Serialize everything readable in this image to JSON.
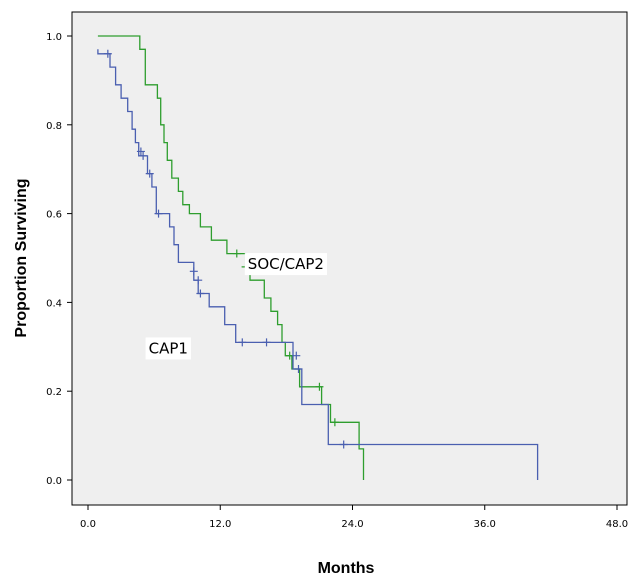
{
  "chart_data": {
    "type": "line",
    "step": true,
    "xlabel": "Months",
    "ylabel": "Proportion Surviving",
    "xlim": [
      0,
      48
    ],
    "ylim": [
      0,
      1
    ],
    "xticks": [
      0,
      12,
      24,
      36,
      48
    ],
    "xtick_labels": [
      "0.0",
      "12.0",
      "24.0",
      "36.0",
      "48.0"
    ],
    "yticks": [
      0,
      0.2,
      0.4,
      0.6,
      0.8,
      1.0
    ],
    "ytick_labels": [
      "0.0",
      "0.2",
      "0.4",
      "0.6",
      "0.8",
      "1.0"
    ],
    "grid": false,
    "background": "#efefef",
    "annotations": [
      {
        "text": "SOC/CAP2",
        "x": 14.5,
        "y": 0.475
      },
      {
        "text": "CAP1",
        "x": 5.5,
        "y": 0.285
      }
    ],
    "series": [
      {
        "name": "SOC/CAP2",
        "color": "#2e9e2e",
        "points": [
          [
            0.9,
            1.0
          ],
          [
            4.7,
            1.0
          ],
          [
            4.7,
            0.97
          ],
          [
            5.2,
            0.97
          ],
          [
            5.2,
            0.89
          ],
          [
            6.3,
            0.89
          ],
          [
            6.3,
            0.86
          ],
          [
            6.6,
            0.86
          ],
          [
            6.6,
            0.8
          ],
          [
            6.9,
            0.8
          ],
          [
            6.9,
            0.76
          ],
          [
            7.2,
            0.76
          ],
          [
            7.2,
            0.72
          ],
          [
            7.6,
            0.72
          ],
          [
            7.6,
            0.68
          ],
          [
            8.2,
            0.68
          ],
          [
            8.2,
            0.65
          ],
          [
            8.6,
            0.65
          ],
          [
            8.6,
            0.62
          ],
          [
            9.2,
            0.62
          ],
          [
            9.2,
            0.6
          ],
          [
            10.2,
            0.6
          ],
          [
            10.2,
            0.57
          ],
          [
            11.2,
            0.57
          ],
          [
            11.2,
            0.54
          ],
          [
            12.6,
            0.54
          ],
          [
            12.6,
            0.51
          ],
          [
            14.3,
            0.51
          ],
          [
            14.3,
            0.48
          ],
          [
            14.7,
            0.48
          ],
          [
            14.7,
            0.45
          ],
          [
            16.0,
            0.45
          ],
          [
            16.0,
            0.41
          ],
          [
            16.6,
            0.41
          ],
          [
            16.6,
            0.38
          ],
          [
            17.2,
            0.38
          ],
          [
            17.2,
            0.35
          ],
          [
            17.6,
            0.35
          ],
          [
            17.6,
            0.31
          ],
          [
            17.9,
            0.31
          ],
          [
            17.9,
            0.28
          ],
          [
            18.5,
            0.28
          ],
          [
            18.5,
            0.25
          ],
          [
            19.2,
            0.25
          ],
          [
            19.2,
            0.21
          ],
          [
            21.2,
            0.21
          ],
          [
            21.2,
            0.17
          ],
          [
            22.0,
            0.17
          ],
          [
            22.0,
            0.13
          ],
          [
            24.6,
            0.13
          ],
          [
            24.6,
            0.07
          ],
          [
            25.0,
            0.07
          ],
          [
            25.0,
            0.0
          ]
        ],
        "censored": [
          [
            13.5,
            0.51
          ],
          [
            14.3,
            0.48
          ],
          [
            18.3,
            0.28
          ],
          [
            21.0,
            0.21
          ],
          [
            22.4,
            0.13
          ]
        ]
      },
      {
        "name": "CAP1",
        "color": "#4a5fb0",
        "points": [
          [
            0.9,
            0.97
          ],
          [
            0.9,
            0.96
          ],
          [
            2.0,
            0.96
          ],
          [
            2.0,
            0.93
          ],
          [
            2.5,
            0.93
          ],
          [
            2.5,
            0.89
          ],
          [
            3.0,
            0.89
          ],
          [
            3.0,
            0.86
          ],
          [
            3.6,
            0.86
          ],
          [
            3.6,
            0.83
          ],
          [
            4.0,
            0.83
          ],
          [
            4.0,
            0.79
          ],
          [
            4.3,
            0.79
          ],
          [
            4.3,
            0.76
          ],
          [
            4.6,
            0.76
          ],
          [
            4.6,
            0.73
          ],
          [
            5.4,
            0.73
          ],
          [
            5.4,
            0.69
          ],
          [
            5.8,
            0.69
          ],
          [
            5.8,
            0.66
          ],
          [
            6.2,
            0.66
          ],
          [
            6.2,
            0.6
          ],
          [
            7.4,
            0.6
          ],
          [
            7.4,
            0.57
          ],
          [
            7.8,
            0.57
          ],
          [
            7.8,
            0.53
          ],
          [
            8.2,
            0.53
          ],
          [
            8.2,
            0.49
          ],
          [
            9.6,
            0.49
          ],
          [
            9.6,
            0.45
          ],
          [
            10.0,
            0.45
          ],
          [
            10.0,
            0.42
          ],
          [
            11.0,
            0.42
          ],
          [
            11.0,
            0.39
          ],
          [
            12.4,
            0.39
          ],
          [
            12.4,
            0.35
          ],
          [
            13.4,
            0.35
          ],
          [
            13.4,
            0.31
          ],
          [
            18.6,
            0.31
          ],
          [
            18.6,
            0.25
          ],
          [
            19.4,
            0.25
          ],
          [
            19.4,
            0.17
          ],
          [
            21.8,
            0.17
          ],
          [
            21.8,
            0.08
          ],
          [
            40.8,
            0.08
          ],
          [
            40.8,
            0.0
          ]
        ],
        "censored": [
          [
            1.8,
            0.96
          ],
          [
            4.8,
            0.74
          ],
          [
            5.0,
            0.73
          ],
          [
            5.6,
            0.69
          ],
          [
            6.4,
            0.6
          ],
          [
            9.6,
            0.47
          ],
          [
            10.0,
            0.45
          ],
          [
            10.2,
            0.42
          ],
          [
            14.0,
            0.31
          ],
          [
            16.2,
            0.31
          ],
          [
            18.9,
            0.28
          ],
          [
            19.1,
            0.25
          ],
          [
            23.2,
            0.08
          ]
        ]
      }
    ]
  }
}
